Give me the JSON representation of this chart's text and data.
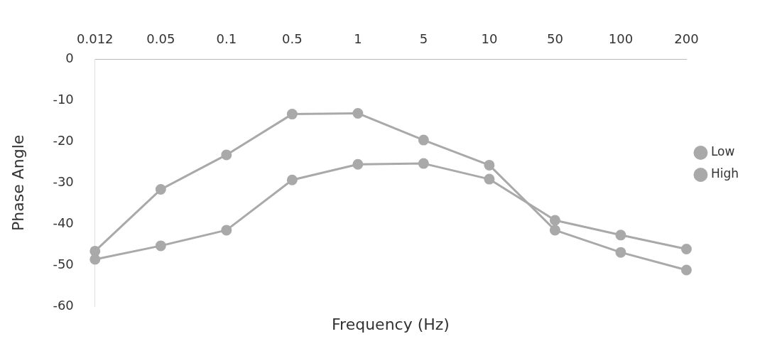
{
  "chart_data": {
    "type": "line",
    "xlabel": "Frequency (Hz)",
    "ylabel": "Phase Angle",
    "categories": [
      "0.012",
      "0.05",
      "0.1",
      "0.5",
      "1",
      "5",
      "10",
      "50",
      "100",
      "200"
    ],
    "series": [
      {
        "name": "Low",
        "color": "#a9a9a9",
        "values": [
          -46.6,
          -31.6,
          -23.2,
          -13.3,
          -13.1,
          -19.6,
          -25.7,
          -41.5,
          -46.9,
          -51.2
        ]
      },
      {
        "name": "High",
        "color": "#a9a9a9",
        "values": [
          -48.6,
          -45.3,
          -41.5,
          -29.3,
          -25.5,
          -25.3,
          -29.1,
          -39.1,
          -42.7,
          -46.1
        ]
      }
    ],
    "ylim": [
      -60,
      0
    ],
    "yticks": [
      0,
      -10,
      -20,
      -30,
      -40,
      -50,
      -60
    ],
    "grid": false,
    "legend": "right",
    "marker": "circle"
  }
}
